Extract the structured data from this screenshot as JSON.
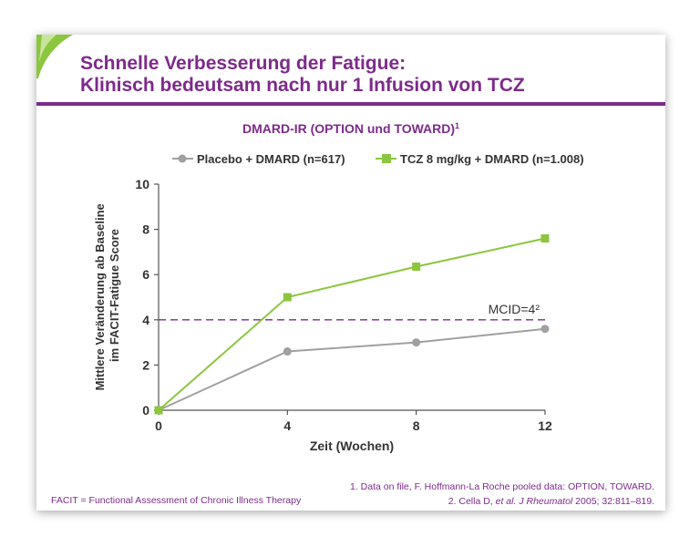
{
  "slide": {
    "title_line1": "Schnelle Verbesserung der Fatigue:",
    "title_line2": "Klinisch bedeutsam nach nur 1 Infusion von TCZ",
    "footnote_left": "FACIT = Functional Assessment of Chronic Illness Therapy",
    "reference_1": "1. Data on file, F. Hoffmann-La Roche pooled data: OPTION, TOWARD.",
    "reference_2_author": "2. Cella D, ",
    "reference_2_etal": "et al.",
    "reference_2_journal": "J Rheumatol",
    "reference_2_rest": " 2005; 32:811–819.",
    "colors": {
      "accent": "#7d2b8b",
      "green_swoosh": "#8cc63f"
    }
  },
  "chart_data": {
    "type": "line",
    "title": "DMARD-IR (OPTION und TOWARD)",
    "title_superscript": "1",
    "xlabel": "Zeit (Wochen)",
    "ylabel_line1": "Mittlere Veränderung ab Baseline",
    "ylabel_line2": "im FACIT-Fatigue Score",
    "x": [
      0,
      4,
      8,
      12
    ],
    "xticks": [
      "0",
      "4",
      "8",
      "12"
    ],
    "yticks": [
      "0",
      "2",
      "4",
      "6",
      "8",
      "10"
    ],
    "xlim": [
      0,
      12
    ],
    "ylim": [
      0,
      10
    ],
    "series": [
      {
        "name": "Placebo + DMARD (n=617)",
        "values": [
          0,
          2.6,
          3.0,
          3.6
        ],
        "color": "#a0a0a0",
        "marker": "circle"
      },
      {
        "name": "TCZ 8 mg/kg + DMARD (n=1.008)",
        "values": [
          0,
          5.0,
          6.35,
          7.6
        ],
        "color": "#8cc63f",
        "marker": "square"
      }
    ],
    "reference_line": {
      "label": "MCID=4²",
      "value": 4,
      "color": "#7d2b8b",
      "style": "dashed"
    },
    "legend_position": "top",
    "grid": false
  }
}
